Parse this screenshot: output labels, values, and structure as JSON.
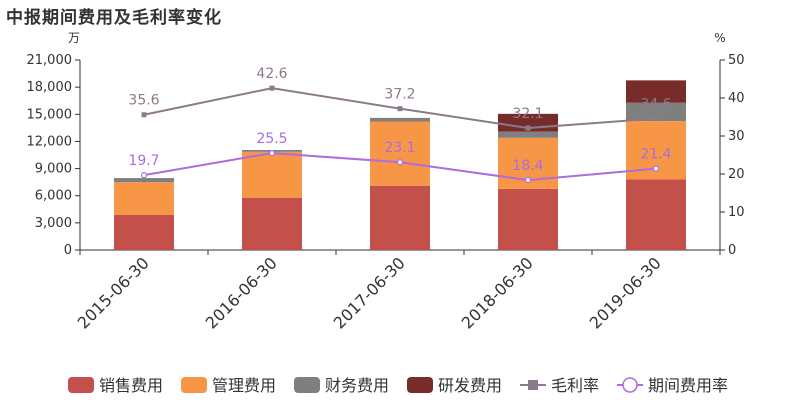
{
  "chart_data": {
    "type": "bar",
    "title": "中报期间费用及毛利率变化",
    "left_unit": "万",
    "right_unit": "%",
    "categories": [
      "2015-06-30",
      "2016-06-30",
      "2017-06-30",
      "2018-06-30",
      "2019-06-30"
    ],
    "bar_series": [
      {
        "name": "销售费用",
        "color": "#c4504b",
        "values": [
          3900,
          5750,
          7100,
          6750,
          7800
        ]
      },
      {
        "name": "管理费用",
        "color": "#f79646",
        "values": [
          3600,
          5100,
          7100,
          5650,
          6450
        ]
      },
      {
        "name": "财务费用",
        "color": "#7f7f7f",
        "values": [
          450,
          200,
          400,
          700,
          2050
        ]
      },
      {
        "name": "研发费用",
        "color": "#772c2a",
        "values": [
          0,
          0,
          0,
          1950,
          2450
        ]
      }
    ],
    "line_series": [
      {
        "name": "毛利率",
        "color": "#8c7a8c",
        "marker": "square",
        "values": [
          35.6,
          42.6,
          37.2,
          32.1,
          34.6
        ]
      },
      {
        "name": "期间费用率",
        "color": "#ad6ddd",
        "marker": "circle",
        "values": [
          19.7,
          25.5,
          23.1,
          18.4,
          21.4
        ]
      }
    ],
    "left_axis": {
      "min": 0,
      "max": 21000,
      "ticks": [
        "0",
        "3,000",
        "6,000",
        "9,000",
        "12,000",
        "15,000",
        "18,000",
        "21,000"
      ]
    },
    "right_axis": {
      "min": 0,
      "max": 50,
      "ticks": [
        "0",
        "10",
        "20",
        "30",
        "40",
        "50"
      ]
    },
    "legend_position": "bottom"
  }
}
